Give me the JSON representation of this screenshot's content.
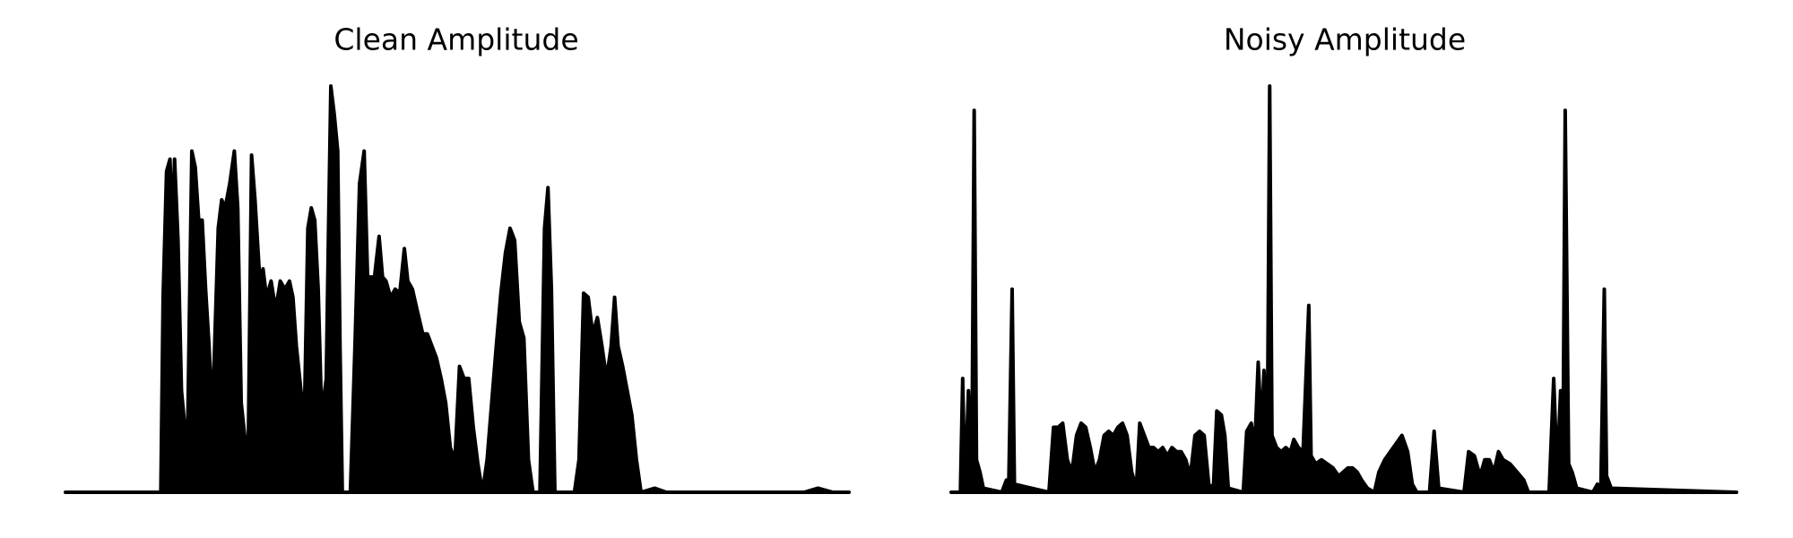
{
  "chart_data": [
    {
      "type": "line",
      "title": "Clean Amplitude",
      "color": "#000000",
      "xlim": [
        0,
        682
      ],
      "ylim": [
        0,
        1
      ],
      "x": [
        0,
        83,
        85,
        88,
        91,
        93,
        95,
        98,
        101,
        103,
        106,
        110,
        113,
        116,
        119,
        122,
        125,
        128,
        133,
        136,
        139,
        143,
        147,
        150,
        153,
        156,
        159,
        162,
        165,
        169,
        172,
        175,
        179,
        183,
        187,
        191,
        195,
        198,
        201,
        205,
        208,
        211,
        214,
        217,
        220,
        223,
        227,
        229,
        231,
        234,
        237,
        239,
        241,
        248,
        252,
        256,
        260,
        263,
        266,
        269,
        273,
        276,
        279,
        283,
        287,
        291,
        295,
        298,
        302,
        306,
        311,
        315,
        319,
        323,
        327,
        331,
        335,
        339,
        343,
        347,
        351,
        355,
        359,
        363,
        367,
        371,
        375,
        379,
        383,
        387,
        391,
        395,
        399,
        403,
        407,
        413,
        417,
        420,
        423,
        426,
        443,
        447,
        451,
        455,
        459,
        463,
        467,
        471,
        475,
        478,
        481,
        485,
        489,
        493,
        497,
        501,
        513,
        523,
        643,
        655,
        668,
        682
      ],
      "values": [
        0,
        0,
        0.48,
        0.79,
        0.82,
        0.65,
        0.82,
        0.62,
        0.25,
        0.19,
        0.08,
        0.84,
        0.8,
        0.67,
        0.67,
        0.5,
        0.36,
        0.19,
        0.65,
        0.72,
        0.7,
        0.76,
        0.84,
        0.7,
        0.22,
        0.14,
        0.08,
        0.83,
        0.72,
        0.53,
        0.55,
        0.48,
        0.52,
        0.45,
        0.52,
        0.5,
        0.52,
        0.48,
        0.36,
        0.25,
        0.19,
        0.65,
        0.7,
        0.67,
        0.5,
        0.19,
        0.28,
        0.65,
        1.0,
        0.93,
        0.84,
        0.36,
        0,
        0,
        0.36,
        0.76,
        0.84,
        0.53,
        0.53,
        0.53,
        0.63,
        0.53,
        0.52,
        0.48,
        0.5,
        0.49,
        0.6,
        0.52,
        0.5,
        0.45,
        0.39,
        0.39,
        0.36,
        0.33,
        0.28,
        0.22,
        0.11,
        0.08,
        0.31,
        0.28,
        0.28,
        0.16,
        0.07,
        0,
        0.08,
        0.22,
        0.36,
        0.49,
        0.59,
        0.65,
        0.62,
        0.42,
        0.38,
        0.08,
        0,
        0,
        0.65,
        0.75,
        0.5,
        0,
        0,
        0.08,
        0.49,
        0.48,
        0.39,
        0.43,
        0.36,
        0.28,
        0.36,
        0.48,
        0.36,
        0.31,
        0.25,
        0.19,
        0.08,
        0,
        0.01,
        0,
        0,
        0.01,
        0,
        0
      ]
    },
    {
      "type": "line",
      "title": "Noisy Amplitude",
      "color": "#000000",
      "xlim": [
        0,
        683
      ],
      "ylim": [
        0,
        1
      ],
      "x": [
        0,
        8,
        10,
        12,
        15,
        18,
        20,
        22,
        25,
        28,
        44,
        48,
        50,
        53,
        55,
        85,
        89,
        93,
        97,
        101,
        105,
        109,
        113,
        117,
        121,
        125,
        129,
        133,
        137,
        141,
        145,
        149,
        153,
        157,
        161,
        164,
        168,
        172,
        176,
        180,
        184,
        188,
        192,
        196,
        200,
        204,
        208,
        212,
        216,
        220,
        224,
        228,
        231,
        235,
        238,
        241,
        254,
        257,
        261,
        264,
        267,
        270,
        272,
        275,
        277,
        279,
        283,
        287,
        291,
        295,
        298,
        302,
        306,
        311,
        313,
        317,
        322,
        327,
        332,
        337,
        341,
        345,
        349,
        353,
        357,
        362,
        368,
        372,
        377,
        382,
        387,
        392,
        397,
        401,
        405,
        416,
        420,
        424,
        446,
        450,
        455,
        460,
        464,
        468,
        472,
        476,
        480,
        486,
        492,
        498,
        502,
        520,
        524,
        527,
        530,
        532,
        534,
        537,
        540,
        544,
        558,
        562,
        565,
        568,
        570,
        574,
        683
      ],
      "values": [
        0,
        0,
        0.28,
        0,
        0.25,
        0.08,
        0.94,
        0.08,
        0.05,
        0.01,
        0,
        0.03,
        0.01,
        0.5,
        0.02,
        0,
        0.16,
        0.16,
        0.17,
        0.08,
        0.05,
        0.14,
        0.17,
        0.16,
        0.11,
        0.05,
        0.08,
        0.14,
        0.15,
        0.14,
        0.16,
        0.17,
        0.14,
        0.05,
        0.01,
        0.17,
        0.14,
        0.11,
        0.11,
        0.1,
        0.11,
        0.09,
        0.11,
        0.1,
        0.1,
        0.08,
        0.04,
        0.14,
        0.15,
        0.14,
        0.02,
        0.01,
        0.2,
        0.19,
        0.14,
        0.01,
        0,
        0.15,
        0.17,
        0.11,
        0.32,
        0.14,
        0.3,
        0.14,
        1.0,
        0.14,
        0.11,
        0.1,
        0.11,
        0.1,
        0.13,
        0.11,
        0.1,
        0.46,
        0.09,
        0.07,
        0.08,
        0.07,
        0.06,
        0.04,
        0.05,
        0.06,
        0.06,
        0.05,
        0.03,
        0.01,
        0,
        0.05,
        0.08,
        0.1,
        0.12,
        0.14,
        0.1,
        0.02,
        0,
        0,
        0.15,
        0.01,
        0,
        0.1,
        0.09,
        0.04,
        0.08,
        0.08,
        0.05,
        0.1,
        0.08,
        0.07,
        0.05,
        0.03,
        0,
        0,
        0.28,
        0.05,
        0.25,
        0.07,
        0.94,
        0.07,
        0.05,
        0.01,
        0,
        0.02,
        0.01,
        0.5,
        0.04,
        0.01,
        0
      ]
    }
  ]
}
